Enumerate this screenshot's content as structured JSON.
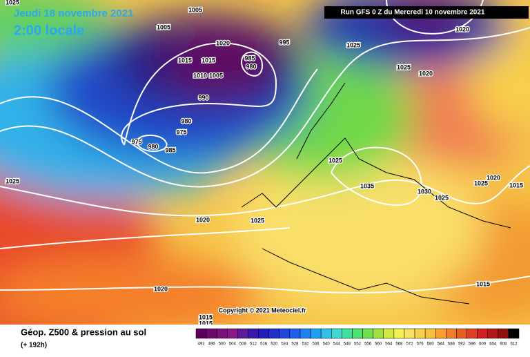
{
  "header": {
    "date": "Jeudi 18 novembre 2021",
    "local_time": "2:00 locale",
    "run": "Run GFS 0 Z du Mercredi 10 novembre 2021"
  },
  "isobar_labels": [
    "1025",
    "1005",
    "1005",
    "1020",
    "1015",
    "1015",
    "1005",
    "1010",
    "995",
    "985",
    "980",
    "990",
    "980",
    "975",
    "975",
    "980",
    "985",
    "1025",
    "1020",
    "1025",
    "1020",
    "1025",
    "1035",
    "1030",
    "1025",
    "1025",
    "1020",
    "1015",
    "1025",
    "1020",
    "1025",
    "1020",
    "1015",
    "1015",
    "1015"
  ],
  "copyright": "Copyright © 2021 Meteociel.fr",
  "footer": {
    "title": "Géop. Z500 & pression au sol",
    "subtitle": "(+ 192h)"
  },
  "legend": {
    "values": [
      492,
      496,
      500,
      504,
      508,
      512,
      516,
      520,
      524,
      528,
      532,
      536,
      540,
      544,
      548,
      552,
      556,
      560,
      564,
      568,
      572,
      576,
      580,
      584,
      588,
      592,
      596,
      600,
      604,
      608,
      612
    ]
  }
}
